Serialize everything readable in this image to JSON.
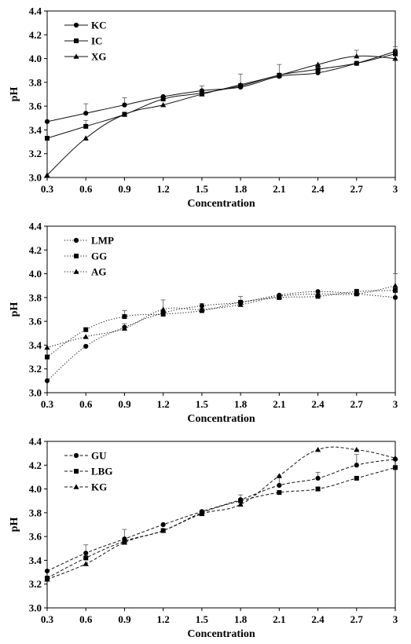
{
  "chart_data": [
    {
      "type": "line",
      "xlabel": "Concentration",
      "ylabel": "pH",
      "x": [
        0.3,
        0.6,
        0.9,
        1.2,
        1.5,
        1.8,
        2.1,
        2.4,
        2.7,
        3.0
      ],
      "x_tick_labels": [
        "0.3",
        "0.6",
        "0.9",
        "1.2",
        "1.5",
        "1.8",
        "2.1",
        "2.4",
        "2.7",
        "3"
      ],
      "y_tick_labels": [
        "3.0",
        "3.2",
        "3.4",
        "3.6",
        "3.8",
        "4.0",
        "4.2",
        "4.4"
      ],
      "ylim": [
        3.0,
        4.4
      ],
      "grid": false,
      "legend_position": "top-left",
      "series": [
        {
          "name": "KC",
          "marker": "circle",
          "dash": "solid",
          "values": [
            3.47,
            3.54,
            3.61,
            3.68,
            3.73,
            3.76,
            3.85,
            3.88,
            3.96,
            4.06
          ],
          "errors": [
            0.01,
            0.08,
            0.06,
            0.01,
            0.04,
            0.01,
            0.01,
            0.01,
            0.01,
            0.04
          ]
        },
        {
          "name": "IC",
          "marker": "square",
          "dash": "solid",
          "values": [
            3.33,
            3.43,
            3.53,
            3.66,
            3.71,
            3.77,
            3.86,
            3.91,
            3.96,
            4.04
          ],
          "errors": [
            0.01,
            0.05,
            0.02,
            0.01,
            0.01,
            0.02,
            0.09,
            0.01,
            0.01,
            0.04
          ]
        },
        {
          "name": "XG",
          "marker": "triangle",
          "dash": "solid",
          "values": [
            3.02,
            3.33,
            3.53,
            3.61,
            3.7,
            3.78,
            3.86,
            3.95,
            4.02,
            4.0
          ],
          "errors": [
            0.01,
            0.01,
            0.01,
            0.01,
            0.01,
            0.09,
            0.01,
            0.01,
            0.05,
            0.01
          ]
        }
      ]
    },
    {
      "type": "line",
      "xlabel": "Concentration",
      "ylabel": "pH",
      "x": [
        0.3,
        0.6,
        0.9,
        1.2,
        1.5,
        1.8,
        2.1,
        2.4,
        2.7,
        3.0
      ],
      "x_tick_labels": [
        "0.3",
        "0.6",
        "0.9",
        "1.2",
        "1.5",
        "1.8",
        "2.1",
        "2.4",
        "2.7",
        "3"
      ],
      "y_tick_labels": [
        "3.0",
        "3.2",
        "3.4",
        "3.6",
        "3.8",
        "4.0",
        "4.2",
        "4.4"
      ],
      "ylim": [
        3.0,
        4.4
      ],
      "grid": false,
      "legend_position": "top-left",
      "series": [
        {
          "name": "LMP",
          "marker": "circle",
          "dash": "dotted",
          "values": [
            3.1,
            3.39,
            3.55,
            3.67,
            3.73,
            3.76,
            3.82,
            3.85,
            3.83,
            3.8
          ],
          "errors": [
            0.01,
            0.01,
            0.03,
            0.01,
            0.02,
            0.01,
            0.01,
            0.01,
            0.01,
            0.01
          ]
        },
        {
          "name": "GG",
          "marker": "square",
          "dash": "dotted",
          "values": [
            3.3,
            3.53,
            3.64,
            3.66,
            3.69,
            3.76,
            3.8,
            3.81,
            3.85,
            3.86
          ],
          "errors": [
            0.01,
            0.01,
            0.05,
            0.01,
            0.01,
            0.05,
            0.01,
            0.01,
            0.02,
            0.01
          ]
        },
        {
          "name": "AG",
          "marker": "triangle",
          "dash": "dotted",
          "values": [
            3.38,
            3.47,
            3.54,
            3.7,
            3.7,
            3.74,
            3.81,
            3.83,
            3.83,
            3.9
          ],
          "errors": [
            0.01,
            0.01,
            0.01,
            0.08,
            0.01,
            0.01,
            0.01,
            0.01,
            0.01,
            0.1
          ]
        }
      ]
    },
    {
      "type": "line",
      "xlabel": "Concentration",
      "ylabel": "pH",
      "x": [
        0.3,
        0.6,
        0.9,
        1.2,
        1.5,
        1.8,
        2.1,
        2.4,
        2.7,
        3.0
      ],
      "x_tick_labels": [
        "0.3",
        "0.6",
        "0.9",
        "1.2",
        "1.5",
        "1.8",
        "2.1",
        "2.4",
        "2.7",
        "3"
      ],
      "y_tick_labels": [
        "3.0",
        "3.2",
        "3.4",
        "3.6",
        "3.8",
        "4.0",
        "4.2",
        "4.4"
      ],
      "ylim": [
        3.0,
        4.4
      ],
      "grid": false,
      "legend_position": "top-left",
      "series": [
        {
          "name": "GU",
          "marker": "circle",
          "dash": "dashed",
          "values": [
            3.31,
            3.46,
            3.58,
            3.7,
            3.81,
            3.91,
            4.03,
            4.09,
            4.2,
            4.25
          ],
          "errors": [
            0.01,
            0.07,
            0.08,
            0.01,
            0.01,
            0.04,
            0.08,
            0.05,
            0.09,
            0.01
          ]
        },
        {
          "name": "LBG",
          "marker": "square",
          "dash": "dashed",
          "values": [
            3.25,
            3.42,
            3.56,
            3.65,
            3.8,
            3.9,
            3.97,
            4.0,
            4.09,
            4.18
          ],
          "errors": [
            0.01,
            0.01,
            0.01,
            0.01,
            0.01,
            0.01,
            0.01,
            0.01,
            0.01,
            0.01
          ]
        },
        {
          "name": "KG",
          "marker": "triangle",
          "dash": "dashed",
          "values": [
            3.24,
            3.37,
            3.55,
            3.65,
            3.79,
            3.87,
            4.11,
            4.33,
            4.33,
            4.26
          ],
          "errors": [
            0.01,
            0.01,
            0.01,
            0.01,
            0.01,
            0.01,
            0.01,
            0.01,
            0.01,
            0.01
          ]
        }
      ]
    }
  ]
}
